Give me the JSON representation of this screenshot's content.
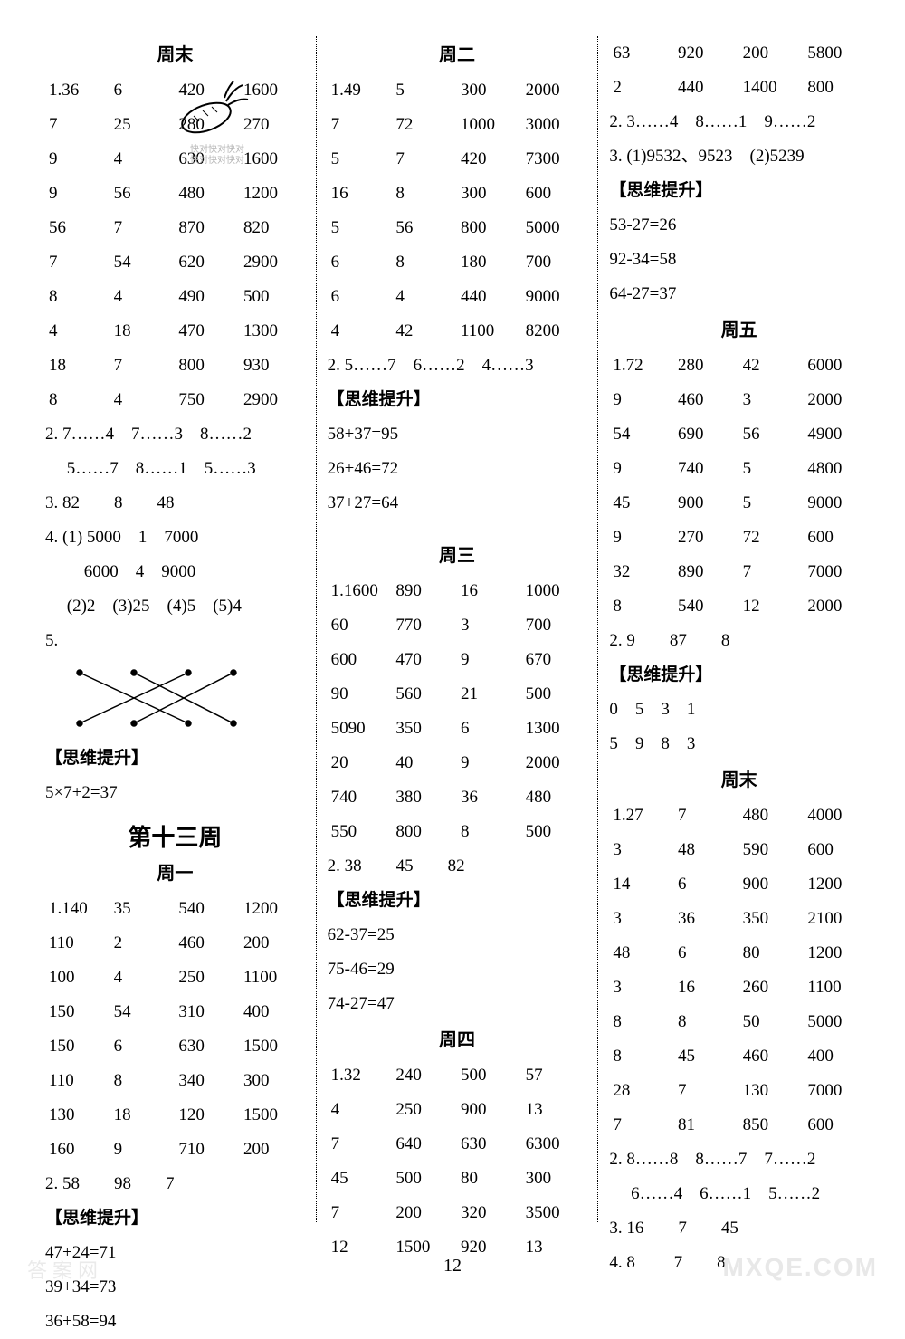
{
  "page_number": "12",
  "watermark_left": "答案网",
  "watermark_right": "MXQE.COM",
  "wm_small1": "快对快对快对",
  "wm_small2": "快对快对快对",
  "col1": {
    "h_weekend": "周末",
    "t1": [
      [
        "1.36",
        "6",
        "420",
        "1600"
      ],
      [
        "7",
        "25",
        "280",
        "270"
      ],
      [
        "9",
        "4",
        "630",
        "1600"
      ],
      [
        "9",
        "56",
        "480",
        "1200"
      ],
      [
        "56",
        "7",
        "870",
        "820"
      ],
      [
        "7",
        "54",
        "620",
        "2900"
      ],
      [
        "8",
        "4",
        "490",
        "500"
      ],
      [
        "4",
        "18",
        "470",
        "1300"
      ],
      [
        "18",
        "7",
        "800",
        "930"
      ],
      [
        "8",
        "4",
        "750",
        "2900"
      ]
    ],
    "l2": "2. 7……4　7……3　8……2",
    "l2b": "　 5……7　8……1　5……3",
    "l3": "3. 82　　8　　48",
    "l4a": "4. (1) 5000　1　7000",
    "l4b": "　　 6000　4　9000",
    "l4c": "　 (2)2　(3)25　(4)5　(5)4",
    "l5": "5.",
    "sw": "【思维提升】",
    "eq1": "5×7+2=37",
    "h_week13": "第十三周",
    "h_mon": "周一",
    "t2": [
      [
        "1.140",
        "35",
        "540",
        "1200"
      ],
      [
        "110",
        "2",
        "460",
        "200"
      ],
      [
        "100",
        "4",
        "250",
        "1100"
      ],
      [
        "150",
        "54",
        "310",
        "400"
      ],
      [
        "150",
        "6",
        "630",
        "1500"
      ],
      [
        "110",
        "8",
        "340",
        "300"
      ],
      [
        "130",
        "18",
        "120",
        "1500"
      ],
      [
        "160",
        "9",
        "710",
        "200"
      ]
    ],
    "l6": "2. 58　　98　　7",
    "sw2": "【思维提升】",
    "e1": "47+24=71",
    "e2": "39+34=73",
    "e3": "36+58=94"
  },
  "col2": {
    "h_tue": "周二",
    "t1": [
      [
        "1.49",
        "5",
        "300",
        "2000"
      ],
      [
        "7",
        "72",
        "1000",
        "3000"
      ],
      [
        "5",
        "7",
        "420",
        "7300"
      ],
      [
        "16",
        "8",
        "300",
        "600"
      ],
      [
        "5",
        "56",
        "800",
        "5000"
      ],
      [
        "6",
        "8",
        "180",
        "700"
      ],
      [
        "6",
        "4",
        "440",
        "9000"
      ],
      [
        "4",
        "42",
        "1100",
        "8200"
      ]
    ],
    "l2": "2. 5……7　6……2　4……3",
    "sw1": "【思维提升】",
    "e1": "58+37=95",
    "e2": "26+46=72",
    "e3": "37+27=64",
    "h_wed": "周三",
    "t2": [
      [
        "1.1600",
        "890",
        "16",
        "1000"
      ],
      [
        "60",
        "770",
        "3",
        "700"
      ],
      [
        "600",
        "470",
        "9",
        "670"
      ],
      [
        "90",
        "560",
        "21",
        "500"
      ],
      [
        "5090",
        "350",
        "6",
        "1300"
      ],
      [
        "20",
        "40",
        "9",
        "2000"
      ],
      [
        "740",
        "380",
        "36",
        "480"
      ],
      [
        "550",
        "800",
        "8",
        "500"
      ]
    ],
    "l3": "2. 38　　45　　82",
    "sw2": "【思维提升】",
    "e4": "62-37=25",
    "e5": "75-46=29",
    "e6": "74-27=47",
    "h_thu": "周四",
    "t3": [
      [
        "1.32",
        "240",
        "500",
        "57"
      ],
      [
        "4",
        "250",
        "900",
        "13"
      ],
      [
        "7",
        "640",
        "630",
        "6300"
      ],
      [
        "45",
        "500",
        "80",
        "300"
      ],
      [
        "7",
        "200",
        "320",
        "3500"
      ],
      [
        "12",
        "1500",
        "920",
        "13"
      ]
    ]
  },
  "col3": {
    "t0": [
      [
        "63",
        "920",
        "200",
        "5800"
      ],
      [
        "2",
        "440",
        "1400",
        "800"
      ]
    ],
    "l2": "2. 3……4　8……1　9……2",
    "l3": "3. (1)9532、9523　(2)5239",
    "sw1": "【思维提升】",
    "e1": "53-27=26",
    "e2": "92-34=58",
    "e3": "64-27=37",
    "h_fri": "周五",
    "t1": [
      [
        "1.72",
        "280",
        "42",
        "6000"
      ],
      [
        "9",
        "460",
        "3",
        "2000"
      ],
      [
        "54",
        "690",
        "56",
        "4900"
      ],
      [
        "9",
        "740",
        "5",
        "4800"
      ],
      [
        "45",
        "900",
        "5",
        "9000"
      ],
      [
        "9",
        "270",
        "72",
        "600"
      ],
      [
        "32",
        "890",
        "7",
        "7000"
      ],
      [
        "8",
        "540",
        "12",
        "2000"
      ]
    ],
    "l4": "2. 9　　87　　8",
    "sw2": "【思维提升】",
    "l5": "0　5　3　1",
    "l6": "5　9　8　3",
    "h_weekend": "周末",
    "t2": [
      [
        "1.27",
        "7",
        "480",
        "4000"
      ],
      [
        "3",
        "48",
        "590",
        "600"
      ],
      [
        "14",
        "6",
        "900",
        "1200"
      ],
      [
        "3",
        "36",
        "350",
        "2100"
      ],
      [
        "48",
        "6",
        "80",
        "1200"
      ],
      [
        "3",
        "16",
        "260",
        "1100"
      ],
      [
        "8",
        "8",
        "50",
        "5000"
      ],
      [
        "8",
        "45",
        "460",
        "400"
      ],
      [
        "28",
        "7",
        "130",
        "7000"
      ],
      [
        "7",
        "81",
        "850",
        "600"
      ]
    ],
    "l7": "2. 8……8　8……7　7……2",
    "l7b": "　 6……4　6……1　5……2",
    "l8": "3. 16　　7　　45",
    "l9": "4. 8　　 7　　8"
  }
}
